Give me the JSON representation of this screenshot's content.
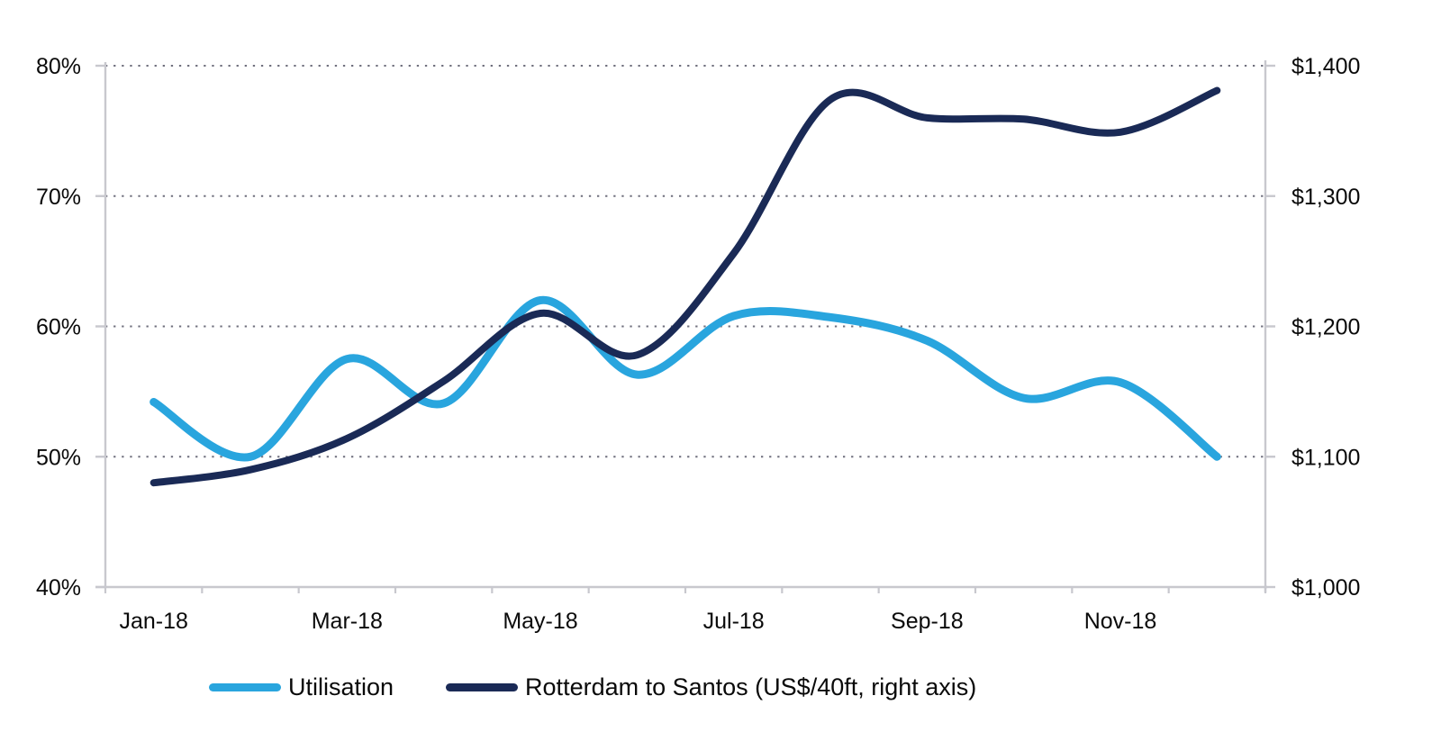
{
  "chart_data": {
    "type": "line",
    "categories": [
      "Jan-18",
      "Feb-18",
      "Mar-18",
      "Apr-18",
      "May-18",
      "Jun-18",
      "Jul-18",
      "Aug-18",
      "Sep-18",
      "Oct-18",
      "Nov-18",
      "Dec-18"
    ],
    "x_tick_labels": [
      "Jan-18",
      "Mar-18",
      "May-18",
      "Jul-18",
      "Sep-18",
      "Nov-18"
    ],
    "series": [
      {
        "name": "Utilisation",
        "axis": "left",
        "color": "#29a5de",
        "stroke_width": 9,
        "values": [
          54.2,
          50.0,
          57.5,
          54.1,
          62.0,
          56.3,
          60.8,
          60.7,
          58.9,
          54.5,
          55.7,
          50.0
        ]
      },
      {
        "name": "Rotterdam to Santos (US$/40ft, right axis)",
        "axis": "right",
        "color": "#1a2a56",
        "stroke_width": 8,
        "values": [
          1080,
          1090,
          1114,
          1158,
          1210,
          1178,
          1256,
          1374,
          1360,
          1359,
          1349,
          1381
        ]
      }
    ],
    "left_axis": {
      "min": 40,
      "max": 80,
      "step": 10,
      "tick_labels": [
        "40%",
        "50%",
        "60%",
        "70%",
        "80%"
      ],
      "unit": "%"
    },
    "right_axis": {
      "min": 1000,
      "max": 1400,
      "step": 100,
      "tick_labels": [
        "$1,000",
        "$1,100",
        "$1,200",
        "$1,300",
        "$1,400"
      ],
      "unit": "US$/40ft"
    },
    "title": "",
    "xlabel": "",
    "ylabel": "",
    "grid": "dotted-horizontal",
    "legend_position": "bottom"
  },
  "colors": {
    "axis_line": "#c8c8ce",
    "grid_dots": "#6f6f7d",
    "tick_text": "#0a0a0a",
    "background": "#ffffff"
  }
}
